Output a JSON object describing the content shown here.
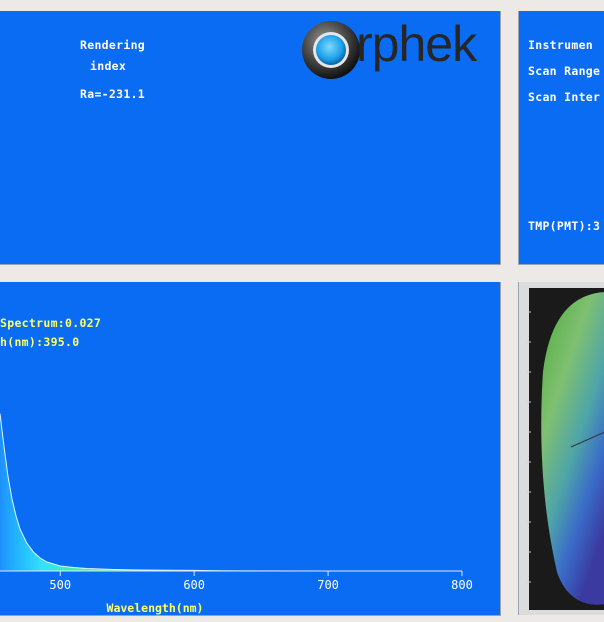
{
  "top_left": {
    "rendering_line1": "Rendering",
    "rendering_line2": "index",
    "ra_value": "Ra=-231.1",
    "logo_text": "rphek"
  },
  "top_right": {
    "instrument": "Instrumen",
    "scan_range": "Scan Range",
    "scan_interval": "Scan Inter",
    "tmp": "TMP(PMT):3"
  },
  "spectrum": {
    "peak_spectrum": "Spectrum:0.027",
    "peak_wavelength": "h(nm):395.0",
    "x_axis_label": "Wavelength(nm)"
  },
  "chart_data": {
    "type": "area",
    "xlabel": "Wavelength(nm)",
    "ylabel": "",
    "title": "",
    "xlim": [
      455,
      800
    ],
    "xticks": [
      500,
      600,
      700,
      800
    ],
    "x": [
      455,
      458,
      461,
      464,
      467,
      470,
      475,
      480,
      485,
      490,
      500,
      510,
      520,
      540,
      560,
      580,
      600,
      620,
      640,
      700,
      800
    ],
    "values": [
      0.0158,
      0.0125,
      0.0095,
      0.0072,
      0.0055,
      0.0042,
      0.0028,
      0.0019,
      0.0013,
      0.0009,
      0.0005,
      0.00035,
      0.00025,
      0.00015,
      0.0001,
      8e-05,
      6e-05,
      3e-05,
      1e-05,
      0.0,
      0.0
    ],
    "ylim": [
      0,
      0.027
    ]
  },
  "colors": {
    "panel_bg": "#0a6cf2",
    "text_white": "#ffffff",
    "text_yellow": "#ffff66",
    "frame": "#ece9e6"
  }
}
